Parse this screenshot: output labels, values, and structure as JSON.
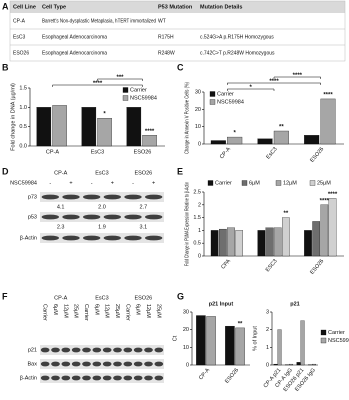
{
  "panel_labels": [
    "A",
    "B",
    "C",
    "D",
    "E",
    "F",
    "G"
  ],
  "table": {
    "header": [
      "Cell Line",
      "Cell Type",
      "P53 Mutation",
      "Mutation Details"
    ],
    "rows": [
      [
        "CP-A",
        "Barrett's Non-dysplastic Metaplasia, hTERT immortalized",
        "WT"
      ],
      [
        "EsC3",
        "Esophageal Adenocarcinoma",
        "R175H",
        "c.524G>A p.R175H Homozygous"
      ],
      [
        "ESO26",
        "Esophageal Adenocarcinoma",
        "R248W",
        "c.742C>T p.R248W Homozygous"
      ]
    ]
  },
  "chart_data": [
    {
      "type": "bar",
      "ylabel": "Fold change in DNA (µg/ml)",
      "categories": [
        "CP-A",
        "EsC3",
        "ESO26"
      ],
      "series": [
        {
          "name": "Carrier",
          "color": "#111111",
          "values": [
            1.0,
            1.0,
            1.0
          ]
        },
        {
          "name": "NSC59984",
          "color": "#a6a6a6",
          "values": [
            1.05,
            0.72,
            0.28
          ],
          "sig": [
            null,
            "*",
            "****"
          ]
        }
      ],
      "ylim": [
        0,
        1.5
      ],
      "yticks": [
        {
          "value": 0,
          "label": "0.0"
        },
        0.5,
        {
          "value": 1,
          "label": "1.0"
        },
        1.5
      ],
      "legend": "upper right",
      "brackets": [
        {
          "from": 0,
          "to": 2,
          "text": "****"
        },
        {
          "from": 1,
          "to": 2,
          "text": "***"
        }
      ]
    },
    {
      "type": "bar",
      "ylabel": "Change in Annexin V Positive Cells (%)",
      "categories": [
        "CP-A",
        "EsC3",
        "ESO26"
      ],
      "series": [
        {
          "name": "Carrier",
          "color": "#111111",
          "values": [
            2,
            3,
            5
          ]
        },
        {
          "name": "NSC59984",
          "color": "#a6a6a6",
          "values": [
            4,
            7.5,
            26
          ],
          "sig": [
            "*",
            "**",
            "****"
          ]
        }
      ],
      "ylim": [
        0,
        30
      ],
      "yticks": [
        0,
        10,
        20,
        30
      ],
      "legend": "upper left",
      "brackets": [
        {
          "from": 0,
          "to": 1,
          "text": "*"
        },
        {
          "from": 0,
          "to": 2,
          "text": "****"
        },
        {
          "from": 1,
          "to": 2,
          "text": "****"
        }
      ]
    },
    {
      "type": "bar",
      "ylabel": "Fold Change in PUMA Expression Relative to β-Actin",
      "categories": [
        "CPA",
        "ESC3",
        "ESO26"
      ],
      "series": [
        {
          "name": "Carrier",
          "color": "#111111",
          "values": [
            1,
            1,
            1
          ]
        },
        {
          "name": "6µM",
          "color": "#6e6e6e",
          "values": [
            1.05,
            1.1,
            1.35
          ]
        },
        {
          "name": "12µM",
          "color": "#a6a6a6",
          "values": [
            1.1,
            1.1,
            2.0
          ],
          "sig": [
            null,
            null,
            "****"
          ]
        },
        {
          "name": "25µM",
          "color": "#d0d0d0",
          "values": [
            1.0,
            1.5,
            2.25
          ],
          "sig": [
            null,
            "**",
            "****"
          ]
        }
      ],
      "ylim": [
        0,
        2.5
      ],
      "yticks": [
        0,
        0.5,
        1,
        1.5,
        2,
        2.5
      ],
      "legend": "top"
    },
    {
      "type": "bar",
      "title": "p21 Input",
      "ylabel": "Ct",
      "categories": [
        "CP-A",
        "ESO26"
      ],
      "series": [
        {
          "name": "Carrier",
          "color": "#111111",
          "values": [
            28,
            22
          ]
        },
        {
          "name": "NSC59984",
          "color": "#a6a6a6",
          "values": [
            27.5,
            21
          ],
          "sig": [
            null,
            "**"
          ]
        }
      ],
      "ylim": [
        0,
        30
      ],
      "yticks": [
        0,
        10,
        20,
        30
      ]
    },
    {
      "type": "bar",
      "title": "p21",
      "ylabel": "% of Input",
      "categories": [
        "CP-A p21",
        "CP-A IgG",
        "ESO26 p21",
        "ESO26 IgG"
      ],
      "series": [
        {
          "name": "Carrier",
          "color": "#111111",
          "values": [
            0.05,
            0.02,
            0.15,
            0.02
          ]
        },
        {
          "name": "NSC59984",
          "color": "#a6a6a6",
          "values": [
            2.0,
            0.05,
            2.5,
            0.05
          ]
        }
      ],
      "ylim": [
        0,
        3
      ],
      "yticks": [
        0,
        1,
        2,
        3
      ],
      "legend": "right"
    }
  ],
  "blots": [
    {
      "groups": [
        "CP-A",
        "EsC3",
        "ESO26"
      ],
      "treatment_label": "NSC59984",
      "lanes": [
        "-",
        "+",
        "-",
        "+",
        "-",
        "+"
      ],
      "proteins": [
        "p73",
        "p53",
        "β-Actin"
      ],
      "ratios": [
        [
          "4.1",
          "2.0",
          "2.7"
        ],
        [
          "2.3",
          "1.9",
          "3.1"
        ]
      ]
    },
    {
      "groups": [
        "CP-A",
        "EsC3",
        "ESO26"
      ],
      "lanes": [
        "Carrier",
        "6µM",
        "12µM",
        "25µM",
        "Carrier",
        "6µM",
        "12µM",
        "25µM",
        "Carrier",
        "6µM",
        "12µM",
        "25µM"
      ],
      "proteins": [
        "p21",
        "Bax",
        "β-Actin"
      ]
    }
  ]
}
